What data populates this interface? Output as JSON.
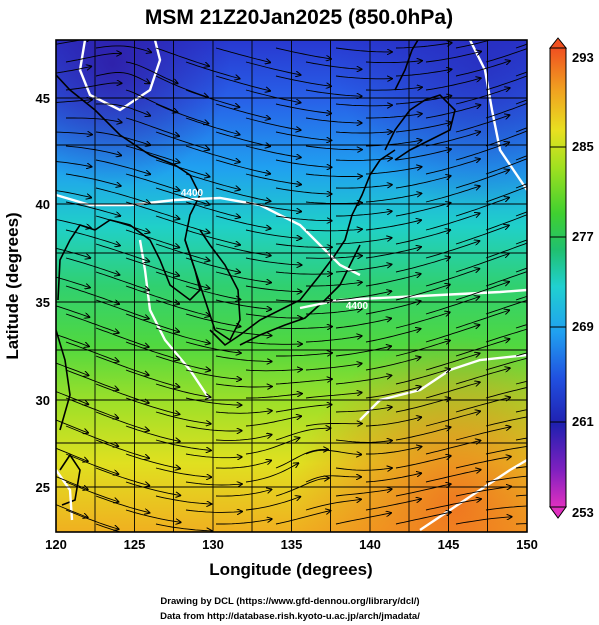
{
  "title": "MSM 21Z20Jan2025 (850.0hPa)",
  "chart_data": {
    "type": "heatmap",
    "title": "MSM 21Z20Jan2025 (850.0hPa)",
    "xlabel": "Longitude (degrees)",
    "ylabel": "Latitude  (degrees)",
    "xlim": [
      120,
      150
    ],
    "ylim": [
      22.4,
      47.6
    ],
    "x_ticks": [
      "120",
      "125",
      "130",
      "135",
      "140",
      "145",
      "150"
    ],
    "y_ticks": [
      "25",
      "30",
      "35",
      "40",
      "45"
    ],
    "grid": true,
    "colorbar": {
      "min": 253,
      "max": 293,
      "tick_labels": [
        "293",
        "285",
        "277",
        "269",
        "261",
        "253"
      ],
      "colors": [
        "#e030c0",
        "#8020c0",
        "#2020b0",
        "#2050e0",
        "#20a0f0",
        "#20d0d0",
        "#20c070",
        "#40d030",
        "#a0e020",
        "#e8e020",
        "#f0a020",
        "#f05020"
      ]
    },
    "contours": [
      {
        "label": "4400",
        "lat": 40.2,
        "lon": 128.6
      },
      {
        "label": "4400",
        "lat": 34.8,
        "lon": 138.9
      }
    ]
  },
  "credits": {
    "line1": "Drawing by DCL (https://www.gfd-dennou.org/library/dcl/)",
    "line2": "Data from http://database.rish.kyoto-u.ac.jp/arch/jmadata/"
  }
}
